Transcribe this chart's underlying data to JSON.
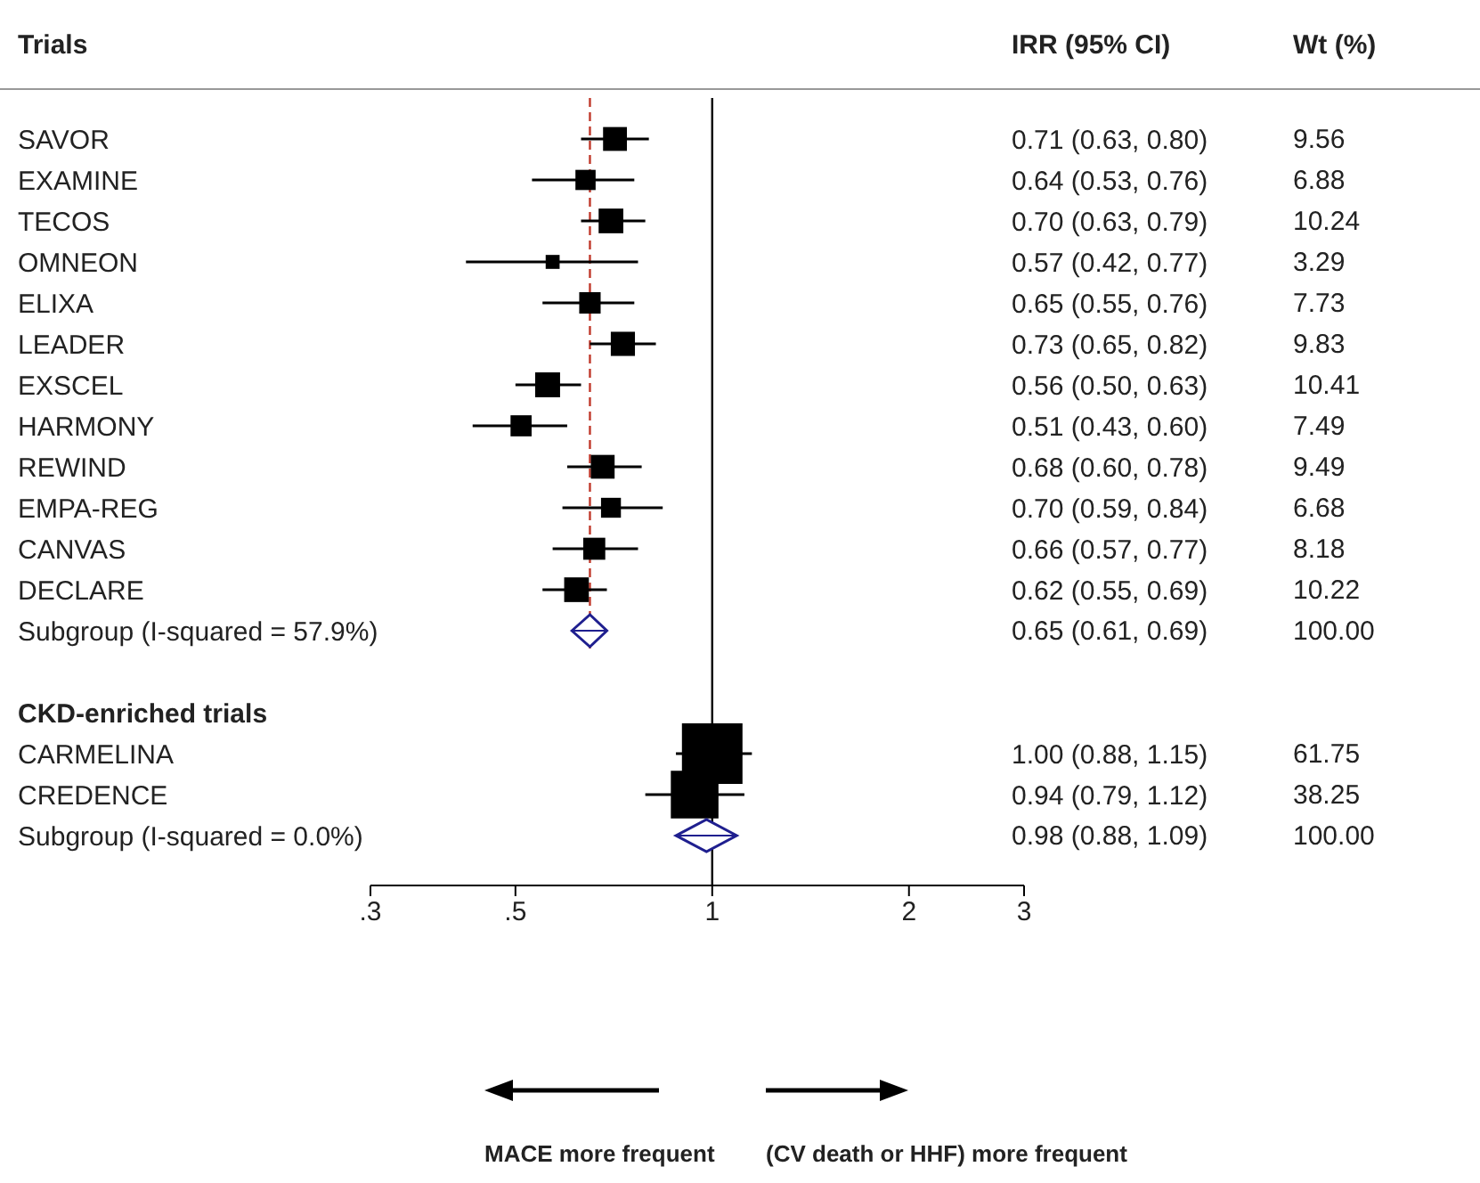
{
  "chart_data": {
    "type": "scatter",
    "orientation": "horizontal",
    "log": "x",
    "ylabel": "Trials",
    "categories": [
      "SAVOR",
      "EXAMINE",
      "TECOS",
      "OMNEON",
      "ELIXA",
      "LEADER",
      "EXSCEL",
      "HARMONY",
      "REWIND",
      "EMPA-REG",
      "CANVAS",
      "DECLARE",
      "Subgroup (I-squared = 57.9%)",
      null,
      "CKD-enriched trials",
      "CARMELINA",
      "CREDENCE",
      "Subgroup (I-squared = 0.0%)"
    ],
    "series": [
      {
        "marker": "square",
        "color": "#000000",
        "values": [
          0.71,
          0.64,
          0.7,
          0.57,
          0.65,
          0.73,
          0.56,
          0.51,
          0.68,
          0.7,
          0.66,
          0.62,
          null,
          null,
          null,
          1.0,
          0.94,
          null
        ],
        "errors": [
          [
            0.63,
            0.8
          ],
          [
            0.53,
            0.76
          ],
          [
            0.63,
            0.79
          ],
          [
            0.42,
            0.77
          ],
          [
            0.55,
            0.76
          ],
          [
            0.65,
            0.82
          ],
          [
            0.5,
            0.63
          ],
          [
            0.43,
            0.6
          ],
          [
            0.6,
            0.78
          ],
          [
            0.59,
            0.84
          ],
          [
            0.57,
            0.77
          ],
          [
            0.55,
            0.69
          ],
          null,
          null,
          null,
          [
            0.88,
            1.15
          ],
          [
            0.79,
            1.12
          ],
          null
        ],
        "sizes": [
          0.155,
          0.111,
          0.166,
          0.053,
          0.125,
          0.159,
          0.169,
          0.121,
          0.154,
          0.108,
          0.132,
          0.166,
          null,
          null,
          null,
          1,
          0.619,
          null
        ],
        "value_labels": [
          "0.71 (0.63, 0.80)",
          "0.64 (0.53, 0.76)",
          "0.70 (0.63, 0.79)",
          "0.57 (0.42, 0.77)",
          "0.65 (0.55, 0.76)",
          "0.73 (0.65, 0.82)",
          "0.56 (0.50, 0.63)",
          "0.51 (0.43, 0.60)",
          "0.68 (0.60, 0.78)",
          "0.70 (0.59, 0.84)",
          "0.66 (0.57, 0.77)",
          "0.62 (0.55, 0.69)",
          null,
          null,
          null,
          "1.00 (0.88, 1.15)",
          "0.94 (0.79, 1.12)",
          null
        ]
      },
      {
        "marker": "diamond",
        "color": "#1f1f8f",
        "values": [
          null,
          null,
          null,
          null,
          null,
          null,
          null,
          null,
          null,
          null,
          null,
          null,
          0.65,
          null,
          null,
          null,
          null,
          0.98
        ],
        "errors": [
          null,
          null,
          null,
          null,
          null,
          null,
          null,
          null,
          null,
          null,
          null,
          null,
          [
            0.61,
            0.69
          ],
          null,
          null,
          null,
          null,
          [
            0.88,
            1.09
          ]
        ]
      }
    ],
    "xlim": [
      0.3,
      3
    ],
    "xticks": [
      {
        "value": 0.3,
        "label": ".3"
      },
      {
        "value": 0.5,
        "label": ".5"
      },
      1,
      2,
      3
    ],
    "ref_lines": [
      {
        "axis": "x",
        "value": 1,
        "color": "#000000",
        "line_style": "solid"
      },
      {
        "axis": "x",
        "value": 0.65,
        "color": "#c0392b",
        "line_style": "dashed"
      }
    ],
    "annotations": [
      "IRR (95% CI)",
      "Wt (%)",
      "MACE more frequent",
      "(CV death or HHF) more frequent",
      "9.56",
      "6.88",
      "10.24",
      "3.29",
      "7.73",
      "9.83",
      "10.41",
      "7.49",
      "9.49",
      "6.68",
      "8.18",
      "10.22",
      "100.00",
      "61.75",
      "38.25",
      "100.00",
      "0.65 (0.61, 0.69)",
      "0.98 (0.88, 1.09)"
    ],
    "grid": false
  }
}
